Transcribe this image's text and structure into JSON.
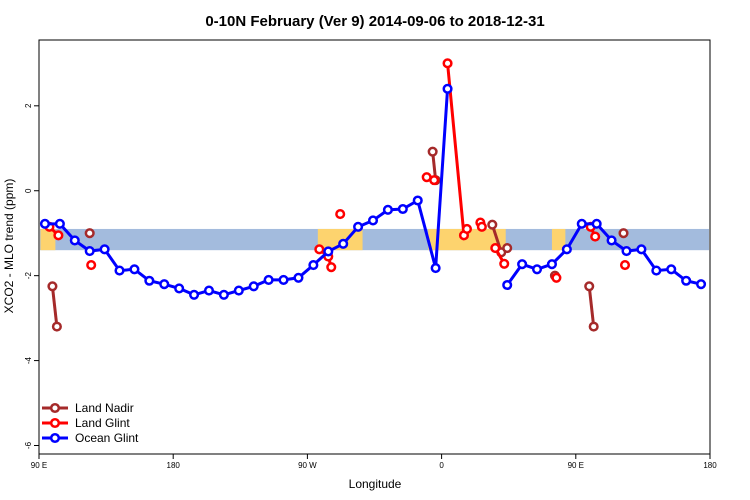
{
  "chart_data": {
    "type": "line",
    "title": "0-10N February (Ver 9)   2014-09-06 to 2018-12-31",
    "xlabel": "Longitude",
    "ylabel": "XCO2 - MLO trend (ppm)",
    "x_ticks": [
      {
        "value": 90,
        "label": "90 E"
      },
      {
        "value": 180,
        "label": "180"
      },
      {
        "value": 270,
        "label": "90 W"
      },
      {
        "value": 360,
        "label": "0"
      },
      {
        "value": 450,
        "label": "90 E"
      },
      {
        "value": 540,
        "label": "180"
      }
    ],
    "y_ticks": [
      {
        "value": -6,
        "label": "-6"
      },
      {
        "value": -4,
        "label": "-4"
      },
      {
        "value": -2,
        "label": "-2"
      },
      {
        "value": 0,
        "label": "0"
      },
      {
        "value": 2,
        "label": "2"
      }
    ],
    "xlim": [
      90,
      540
    ],
    "ylim": [
      -6.2,
      3.55
    ],
    "grid": false,
    "legend_position": "bottom-left",
    "map_band": {
      "ylim": [
        -1.4,
        -0.9
      ],
      "ocean_color": "#a3bbdd",
      "land_color": "#fdd36e",
      "land_segments": [
        [
          91,
          101
        ],
        [
          277,
          307
        ],
        [
          351,
          403
        ],
        [
          434,
          443
        ]
      ]
    },
    "series": [
      {
        "name": "Land Nadir",
        "color": "#a52a2a",
        "segments": [
          [
            [
              99,
              -2.25
            ],
            [
              102,
              -3.2
            ]
          ],
          [
            [
              124,
              -1.0
            ]
          ],
          [
            [
              354,
              0.92
            ],
            [
              356,
              0.25
            ]
          ],
          [
            [
              394,
              -0.8
            ],
            [
              400,
              -1.45
            ],
            [
              404,
              -1.35
            ]
          ],
          [
            [
              436,
              -2.0
            ]
          ],
          [
            [
              459,
              -2.25
            ],
            [
              462,
              -3.2
            ]
          ],
          [
            [
              482,
              -1.0
            ]
          ]
        ]
      },
      {
        "name": "Land Glint",
        "color": "#ff0000",
        "segments": [
          [
            [
              97,
              -0.85
            ],
            [
              103,
              -1.05
            ]
          ],
          [
            [
              125,
              -1.75
            ]
          ],
          [
            [
              278,
              -1.38
            ],
            [
              284,
              -1.55
            ],
            [
              286,
              -1.8
            ]
          ],
          [
            [
              292,
              -0.55
            ]
          ],
          [
            [
              350,
              0.32
            ],
            [
              355,
              0.25
            ]
          ],
          [
            [
              364,
              3.0
            ],
            [
              375,
              -1.05
            ],
            [
              377,
              -0.9
            ]
          ],
          [
            [
              386,
              -0.75
            ],
            [
              387,
              -0.85
            ]
          ],
          [
            [
              396,
              -1.35
            ],
            [
              402,
              -1.72
            ]
          ],
          [
            [
              437,
              -2.05
            ]
          ],
          [
            [
              460,
              -0.85
            ],
            [
              463,
              -1.08
            ]
          ],
          [
            [
              483,
              -1.75
            ]
          ]
        ]
      },
      {
        "name": "Ocean Glint",
        "color": "#0000ff",
        "segments": [
          [
            [
              94,
              -0.78
            ],
            [
              104,
              -0.78
            ],
            [
              114,
              -1.17
            ],
            [
              124,
              -1.42
            ],
            [
              134,
              -1.38
            ],
            [
              144,
              -1.88
            ],
            [
              154,
              -1.85
            ],
            [
              164,
              -2.12
            ],
            [
              174,
              -2.2
            ],
            [
              184,
              -2.3
            ],
            [
              194,
              -2.45
            ],
            [
              204,
              -2.35
            ],
            [
              214,
              -2.45
            ],
            [
              224,
              -2.35
            ],
            [
              234,
              -2.25
            ],
            [
              244,
              -2.1
            ],
            [
              254,
              -2.1
            ],
            [
              264,
              -2.05
            ],
            [
              274,
              -1.75
            ],
            [
              284,
              -1.43
            ],
            [
              294,
              -1.25
            ],
            [
              304,
              -0.85
            ],
            [
              314,
              -0.7
            ],
            [
              324,
              -0.45
            ],
            [
              334,
              -0.43
            ],
            [
              344,
              -0.23
            ],
            [
              356,
              -1.82
            ],
            [
              364,
              2.4
            ]
          ],
          [
            [
              404,
              -2.22
            ],
            [
              414,
              -1.73
            ],
            [
              424,
              -1.85
            ],
            [
              434,
              -1.73
            ],
            [
              444,
              -1.38
            ],
            [
              454,
              -0.78
            ],
            [
              464,
              -0.78
            ],
            [
              474,
              -1.17
            ],
            [
              484,
              -1.42
            ],
            [
              494,
              -1.38
            ],
            [
              504,
              -1.88
            ],
            [
              514,
              -1.85
            ],
            [
              524,
              -2.12
            ],
            [
              534,
              -2.2
            ]
          ]
        ]
      }
    ]
  }
}
